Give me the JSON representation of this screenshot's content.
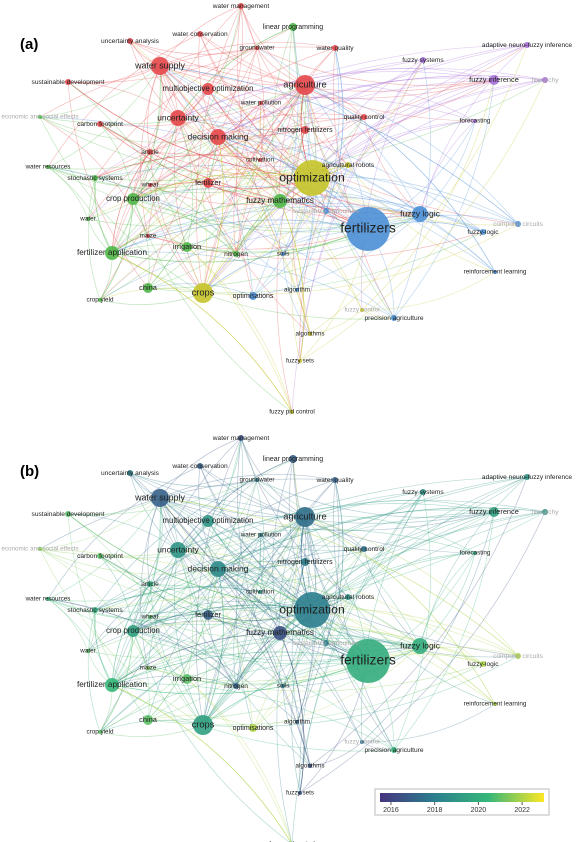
{
  "panels": [
    {
      "label": "(a)"
    },
    {
      "label": "(b)"
    }
  ],
  "nodes": [
    {
      "label": "water management",
      "year": 2016.5
    },
    {
      "label": "linear programming",
      "year": 2017
    },
    {
      "label": "uncertainty analysis",
      "year": 2018
    },
    {
      "label": "water conservation",
      "year": 2017
    },
    {
      "label": "groundwater",
      "year": 2018
    },
    {
      "label": "water quality",
      "year": 2017
    },
    {
      "label": "water supply",
      "year": 2017
    },
    {
      "label": "sustainable development",
      "year": 2021
    },
    {
      "label": "multiobjective optimization",
      "year": 2019
    },
    {
      "label": "agriculture",
      "year": 2017.5
    },
    {
      "label": "fuzzy systems",
      "year": 2019
    },
    {
      "label": "adaptive neuro-fuzzy inference",
      "year": 2019
    },
    {
      "label": "fuzzy inference",
      "year": 2019.5
    },
    {
      "label": "hierarchy",
      "year": 2019
    },
    {
      "label": "economic and social effects",
      "year": 2021.5
    },
    {
      "label": "carbon footprint",
      "year": 2021
    },
    {
      "label": "uncertainty",
      "year": 2019
    },
    {
      "label": "water pollution",
      "year": 2018
    },
    {
      "label": "quality control",
      "year": 2017.5
    },
    {
      "label": "decision making",
      "year": 2018.5
    },
    {
      "label": "nitrogen fertilizers",
      "year": 2018
    },
    {
      "label": "forecasting",
      "year": 2020
    },
    {
      "label": "water resources",
      "year": 2020.5
    },
    {
      "label": "stochastic systems",
      "year": 2020
    },
    {
      "label": "article",
      "year": 2020
    },
    {
      "label": "cultivation",
      "year": 2019
    },
    {
      "label": "agricultural robots",
      "year": 2019
    },
    {
      "label": "wheat",
      "year": 2021
    },
    {
      "label": "fertilizer",
      "year": 2017
    },
    {
      "label": "optimization",
      "year": 2018
    },
    {
      "label": "crop production",
      "year": 2019.5
    },
    {
      "label": "fuzzy mathematics",
      "year": 2016.5
    },
    {
      "label": "sustainable agriculture",
      "year": 2018
    },
    {
      "label": "fuzzy logic",
      "year": 2020
    },
    {
      "label": "fertilizers",
      "year": 2020
    },
    {
      "label": "computer circuits",
      "year": 2022
    },
    {
      "label": "fuzzy-logic",
      "year": 2022
    },
    {
      "label": "water",
      "year": 2021
    },
    {
      "label": "maize",
      "year": 2021.5
    },
    {
      "label": "irrigation",
      "year": 2021
    },
    {
      "label": "nitrogen",
      "year": 2017
    },
    {
      "label": "fertilizer application",
      "year": 2020.5
    },
    {
      "label": "soils",
      "year": 2018
    },
    {
      "label": "reinforcement learning",
      "year": 2022
    },
    {
      "label": "china",
      "year": 2021
    },
    {
      "label": "crops",
      "year": 2019.5
    },
    {
      "label": "optimisations",
      "year": 2022
    },
    {
      "label": "algorithm",
      "year": 2017
    },
    {
      "label": "crop yield",
      "year": 2021
    },
    {
      "label": "fuzzy control",
      "year": 2017.5
    },
    {
      "label": "precision agriculture",
      "year": 2020.5
    },
    {
      "label": "algorithms",
      "year": 2016.5
    },
    {
      "label": "fuzzy sets",
      "year": 2016.5
    },
    {
      "label": "fuzzy pid control",
      "year": 2022
    }
  ],
  "legend": {
    "lim": [
      2015.5,
      2023
    ],
    "ticks": [
      2016,
      2018,
      2020,
      2022
    ]
  }
}
